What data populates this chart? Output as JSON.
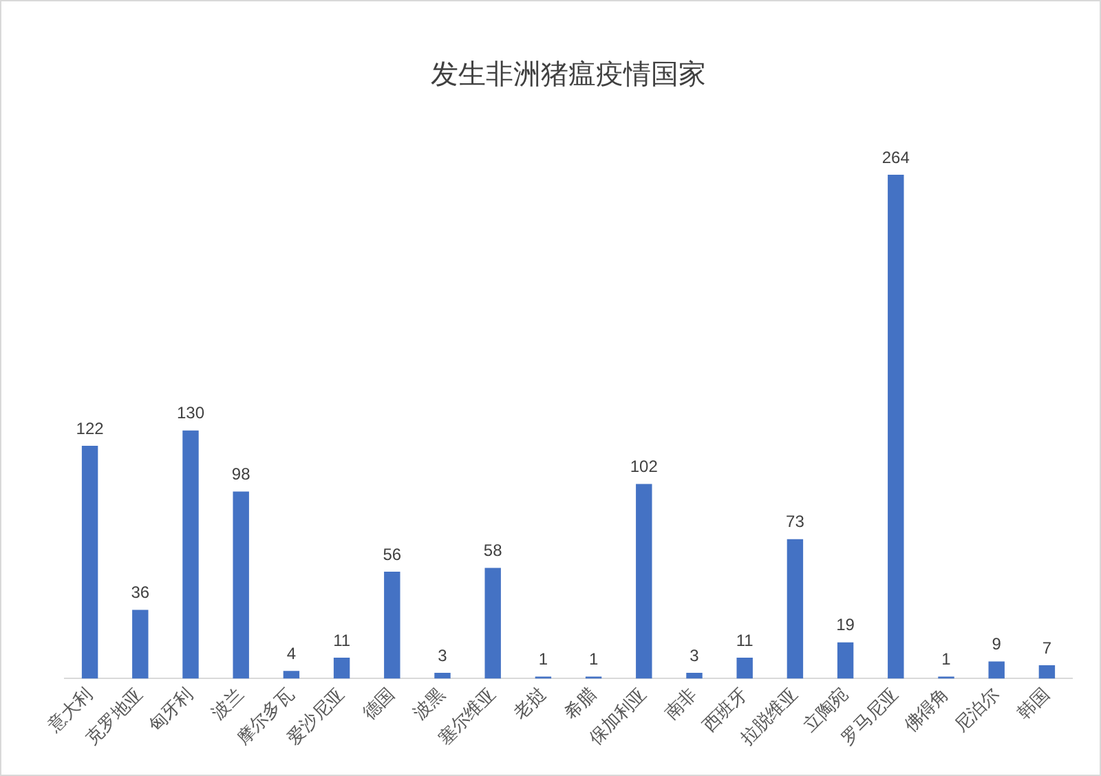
{
  "chart_data": {
    "type": "bar",
    "title": "发生非洲猪瘟疫情国家",
    "categories": [
      "意大利",
      "克罗地亚",
      "匈牙利",
      "波兰",
      "摩尔多瓦",
      "爱沙尼亚",
      "德国",
      "波黑",
      "塞尔维亚",
      "老挝",
      "希腊",
      "保加利亚",
      "南非",
      "西班牙",
      "拉脱维亚",
      "立陶宛",
      "罗马尼亚",
      "佛得角",
      "尼泊尔",
      "韩国"
    ],
    "values": [
      122,
      36,
      130,
      98,
      4,
      11,
      56,
      3,
      58,
      1,
      1,
      102,
      3,
      11,
      73,
      19,
      264,
      1,
      9,
      7
    ],
    "color": "#4472c4",
    "data_labels": true,
    "tick_labels": "x"
  }
}
